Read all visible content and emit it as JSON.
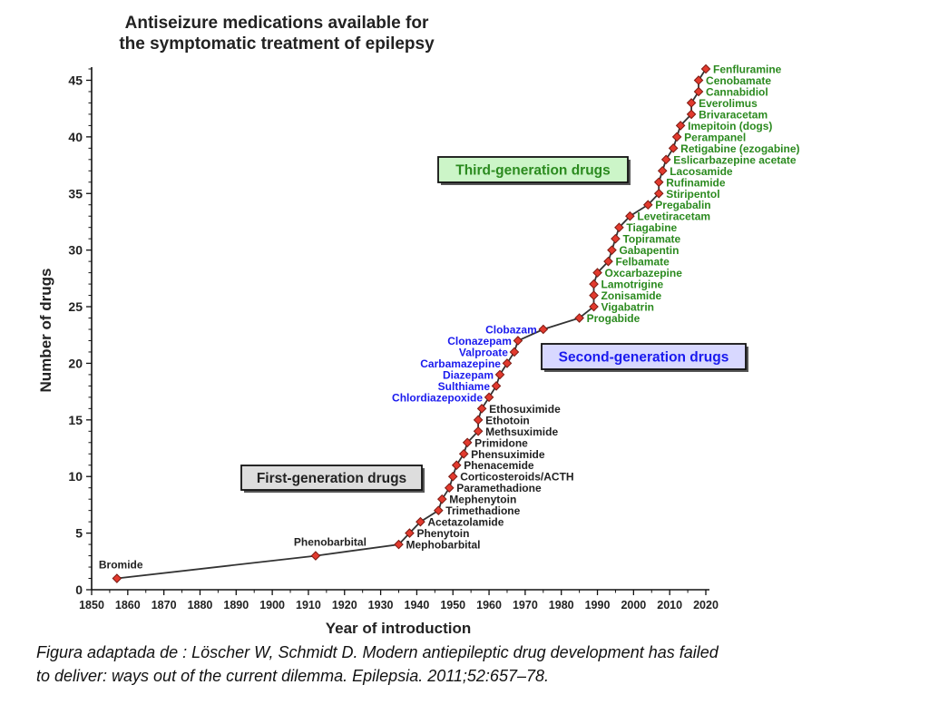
{
  "chart_data": {
    "type": "line",
    "title_lines": [
      "Antiseizure medications available for",
      "the symptomatic treatment of epilepsy"
    ],
    "xlabel": "Year of introduction",
    "ylabel": "Number of drugs",
    "xlim": [
      1850,
      2020
    ],
    "ylim": [
      0,
      46
    ],
    "x_ticks": [
      "1850",
      "1860",
      "1870",
      "1880",
      "1890",
      "1900",
      "1910",
      "1920",
      "1930",
      "1940",
      "1950",
      "1960",
      "1970",
      "1980",
      "1990",
      "2000",
      "2010",
      "2020"
    ],
    "y_ticks": [
      "0",
      "5",
      "10",
      "15",
      "20",
      "25",
      "30",
      "35",
      "40",
      "45"
    ],
    "generation_boxes": [
      {
        "label": "First-generation drugs",
        "fill": "#dddddd",
        "text_color": "#222222"
      },
      {
        "label": "Second-generation drugs",
        "fill": "#d8d8ff",
        "text_color": "#1a1aee"
      },
      {
        "label": "Third-generation drugs",
        "fill": "#ccf5c8",
        "text_color": "#2b8a1f"
      }
    ],
    "points": [
      {
        "x": 1857,
        "y": 1
      },
      {
        "x": 1912,
        "y": 3
      },
      {
        "x": 1935,
        "y": 4
      },
      {
        "x": 1938,
        "y": 5
      },
      {
        "x": 1941,
        "y": 6
      },
      {
        "x": 1946,
        "y": 7
      },
      {
        "x": 1947,
        "y": 8
      },
      {
        "x": 1949,
        "y": 9
      },
      {
        "x": 1950,
        "y": 10
      },
      {
        "x": 1951,
        "y": 11
      },
      {
        "x": 1953,
        "y": 12
      },
      {
        "x": 1954,
        "y": 13
      },
      {
        "x": 1957,
        "y": 14
      },
      {
        "x": 1957,
        "y": 15
      },
      {
        "x": 1958,
        "y": 16
      },
      {
        "x": 1960,
        "y": 17
      },
      {
        "x": 1962,
        "y": 18
      },
      {
        "x": 1963,
        "y": 19
      },
      {
        "x": 1965,
        "y": 20
      },
      {
        "x": 1967,
        "y": 21
      },
      {
        "x": 1968,
        "y": 22
      },
      {
        "x": 1975,
        "y": 23
      },
      {
        "x": 1985,
        "y": 24
      },
      {
        "x": 1989,
        "y": 25
      },
      {
        "x": 1989,
        "y": 26
      },
      {
        "x": 1989,
        "y": 27
      },
      {
        "x": 1990,
        "y": 28
      },
      {
        "x": 1993,
        "y": 29
      },
      {
        "x": 1994,
        "y": 30
      },
      {
        "x": 1995,
        "y": 31
      },
      {
        "x": 1996,
        "y": 32
      },
      {
        "x": 1999,
        "y": 33
      },
      {
        "x": 2004,
        "y": 34
      },
      {
        "x": 2007,
        "y": 35
      },
      {
        "x": 2007,
        "y": 36
      },
      {
        "x": 2008,
        "y": 37
      },
      {
        "x": 2009,
        "y": 38
      },
      {
        "x": 2011,
        "y": 39
      },
      {
        "x": 2012,
        "y": 40
      },
      {
        "x": 2013,
        "y": 41
      },
      {
        "x": 2016,
        "y": 42
      },
      {
        "x": 2016,
        "y": 43
      },
      {
        "x": 2018,
        "y": 44
      },
      {
        "x": 2018,
        "y": 45
      },
      {
        "x": 2020,
        "y": 46
      }
    ],
    "drug_labels": [
      {
        "text": "Bromide",
        "x": 1857,
        "y": 1,
        "gen": 1
      },
      {
        "text": "Phenobarbital",
        "x": 1912,
        "y": 3,
        "gen": 1
      },
      {
        "text": "Mephobarbital",
        "x": 1935,
        "y": 4,
        "gen": 1
      },
      {
        "text": "Phenytoin",
        "x": 1938,
        "y": 5,
        "gen": 1
      },
      {
        "text": "Acetazolamide",
        "x": 1941,
        "y": 6,
        "gen": 1
      },
      {
        "text": "Trimethadione",
        "x": 1946,
        "y": 7,
        "gen": 1
      },
      {
        "text": "Mephenytoin",
        "x": 1947,
        "y": 8,
        "gen": 1
      },
      {
        "text": "Paramethadione",
        "x": 1949,
        "y": 9,
        "gen": 1
      },
      {
        "text": "Corticosteroids/ACTH",
        "x": 1950,
        "y": 10,
        "gen": 1
      },
      {
        "text": "Phenacemide",
        "x": 1951,
        "y": 11,
        "gen": 1
      },
      {
        "text": "Phensuximide",
        "x": 1953,
        "y": 12,
        "gen": 1
      },
      {
        "text": "Primidone",
        "x": 1954,
        "y": 13,
        "gen": 1
      },
      {
        "text": "Methsuximide",
        "x": 1957,
        "y": 14,
        "gen": 1
      },
      {
        "text": "Ethotoin",
        "x": 1957,
        "y": 15,
        "gen": 1
      },
      {
        "text": "Ethosuximide",
        "x": 1958,
        "y": 16,
        "gen": 1
      },
      {
        "text": "Chlordiazepoxide",
        "x": 1960,
        "y": 17,
        "gen": 2
      },
      {
        "text": "Sulthiame",
        "x": 1962,
        "y": 18,
        "gen": 2
      },
      {
        "text": "Diazepam",
        "x": 1963,
        "y": 19,
        "gen": 2
      },
      {
        "text": "Carbamazepine",
        "x": 1965,
        "y": 20,
        "gen": 2
      },
      {
        "text": "Valproate",
        "x": 1967,
        "y": 21,
        "gen": 2
      },
      {
        "text": "Clonazepam",
        "x": 1968,
        "y": 22,
        "gen": 2
      },
      {
        "text": "Clobazam",
        "x": 1975,
        "y": 23,
        "gen": 2
      },
      {
        "text": "Progabide",
        "x": 1985,
        "y": 24,
        "gen": 3
      },
      {
        "text": "Vigabatrin",
        "x": 1989,
        "y": 25,
        "gen": 3
      },
      {
        "text": "Zonisamide",
        "x": 1989,
        "y": 26,
        "gen": 3
      },
      {
        "text": "Lamotrigine",
        "x": 1989,
        "y": 27,
        "gen": 3
      },
      {
        "text": "Oxcarbazepine",
        "x": 1990,
        "y": 28,
        "gen": 3
      },
      {
        "text": "Felbamate",
        "x": 1993,
        "y": 29,
        "gen": 3
      },
      {
        "text": "Gabapentin",
        "x": 1994,
        "y": 30,
        "gen": 3
      },
      {
        "text": "Topiramate",
        "x": 1995,
        "y": 31,
        "gen": 3
      },
      {
        "text": "Tiagabine",
        "x": 1996,
        "y": 32,
        "gen": 3
      },
      {
        "text": "Levetiracetam",
        "x": 1999,
        "y": 33,
        "gen": 3
      },
      {
        "text": "Pregabalin",
        "x": 2004,
        "y": 34,
        "gen": 3
      },
      {
        "text": "Stiripentol",
        "x": 2007,
        "y": 35,
        "gen": 3
      },
      {
        "text": "Rufinamide",
        "x": 2007,
        "y": 36,
        "gen": 3
      },
      {
        "text": "Lacosamide",
        "x": 2008,
        "y": 37,
        "gen": 3
      },
      {
        "text": "Eslicarbazepine acetate",
        "x": 2009,
        "y": 38,
        "gen": 3
      },
      {
        "text": "Retigabine (ezogabine)",
        "x": 2011,
        "y": 39,
        "gen": 3
      },
      {
        "text": "Perampanel",
        "x": 2012,
        "y": 40,
        "gen": 3
      },
      {
        "text": "Imepitoin (dogs)",
        "x": 2013,
        "y": 41,
        "gen": 3
      },
      {
        "text": "Brivaracetam",
        "x": 2016,
        "y": 42,
        "gen": 3
      },
      {
        "text": "Everolimus",
        "x": 2016,
        "y": 43,
        "gen": 3
      },
      {
        "text": "Cannabidiol",
        "x": 2018,
        "y": 44,
        "gen": 3
      },
      {
        "text": "Cenobamate",
        "x": 2018,
        "y": 45,
        "gen": 3
      },
      {
        "text": "Fenfluramine",
        "x": 2020,
        "y": 46,
        "gen": 3
      }
    ],
    "colors": {
      "gen1_text": "#222222",
      "gen2_text": "#1a1aee",
      "gen3_text": "#2b8a1f",
      "marker_fill": "#e23a2e",
      "marker_stroke": "#7a1a12",
      "line": "#333333"
    }
  },
  "caption": {
    "line1": "Figura adaptada de : Löscher W, Schmidt D. Modern antiepileptic drug development has failed",
    "line2": "to deliver: ways out of the current dilemma. Epilepsia. 2011;52:657–78."
  }
}
